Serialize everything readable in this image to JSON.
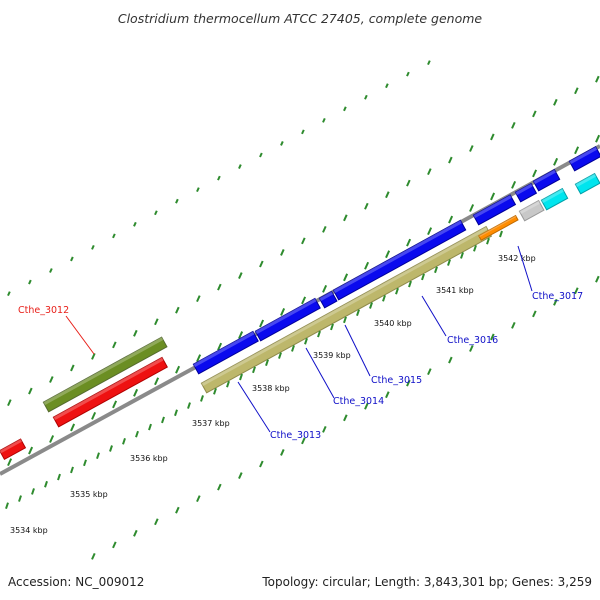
{
  "title": "Clostridium thermocellum ATCC 27405, complete genome",
  "footer": {
    "accession": "Accession: NC_009012",
    "summary": "Topology: circular; Length: 3,843,301 bp; Genes: 3,259"
  },
  "scale_labels": [
    "3534 kbp",
    "3535 kbp",
    "3536 kbp",
    "3537 kbp",
    "3538 kbp",
    "3539 kbp",
    "3540 kbp",
    "3541 kbp",
    "3542 kbp"
  ],
  "gene_labels": [
    {
      "text": "Cthe_3012",
      "color": "#e8201a"
    },
    {
      "text": "Cthe_3013",
      "color": "#1010c8"
    },
    {
      "text": "Cthe_3014",
      "color": "#1010c8"
    },
    {
      "text": "Cthe_3015",
      "color": "#1010c8"
    },
    {
      "text": "Cthe_3016",
      "color": "#1010c8"
    },
    {
      "text": "Cthe_3017",
      "color": "#1010c8"
    }
  ],
  "colors": {
    "backbone": "#8a8a8a",
    "gc_tick": "#2e8b2e",
    "cds_forward": "#0a0aee",
    "cds_reverse": "#ee1111",
    "trna": "#6b8e23",
    "orange_feature": "#ff8c00",
    "cyan_feature": "#00e5ee",
    "grey_feature": "#c8c8c8",
    "khaki_feature": "#bdb76b"
  }
}
